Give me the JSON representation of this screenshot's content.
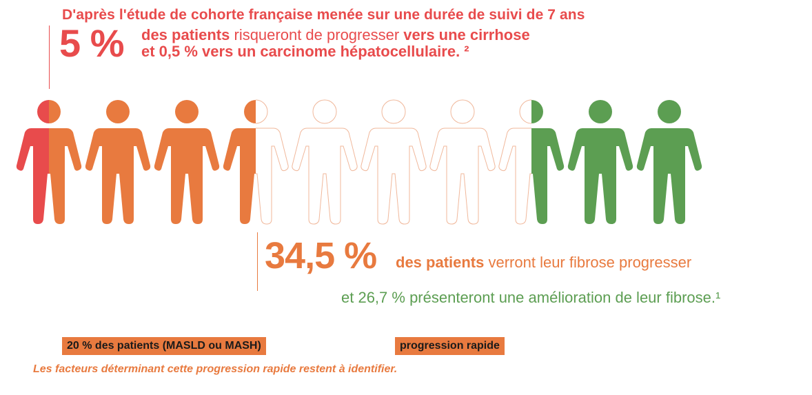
{
  "heading": "D'après l'étude de cohorte française menée sur une durée de suivi de 7 ans",
  "cirrhosis": {
    "big_value": "5 %",
    "line1_bold": "des patients",
    "line1_regular": " risqueront de progresser ",
    "line1_bold2": "vers une cirrhose",
    "line2": "et 0,5 % vers un carcinome hépatocellulaire. ²"
  },
  "fibrosis": {
    "big_value": "34,5 %",
    "line1_bold": "des patients",
    "line1_regular": " verront leur fibrose progresser",
    "line2": "et 26,7 % présenteront une amélioration de leur fibrose.¹"
  },
  "badges": {
    "left": "20 % des patients (MASLD ou MASH)",
    "right": "progression  rapide"
  },
  "note": "Les facteurs déterminant cette progression rapide restent à identifier.",
  "colors": {
    "red": "#e84b4c",
    "orange": "#e87a3f",
    "green": "#5c9e52",
    "outline": "#f0b79a"
  },
  "figures": [
    {
      "icon": "person-icon",
      "style": "red-orange-split"
    },
    {
      "icon": "person-icon",
      "style": "orange"
    },
    {
      "icon": "person-icon",
      "style": "orange"
    },
    {
      "icon": "person-icon",
      "style": "orange-outline-split"
    },
    {
      "icon": "person-icon",
      "style": "outline"
    },
    {
      "icon": "person-icon",
      "style": "outline"
    },
    {
      "icon": "person-icon",
      "style": "outline"
    },
    {
      "icon": "person-icon",
      "style": "outline-green-split"
    },
    {
      "icon": "person-icon",
      "style": "green"
    },
    {
      "icon": "person-icon",
      "style": "green"
    }
  ]
}
